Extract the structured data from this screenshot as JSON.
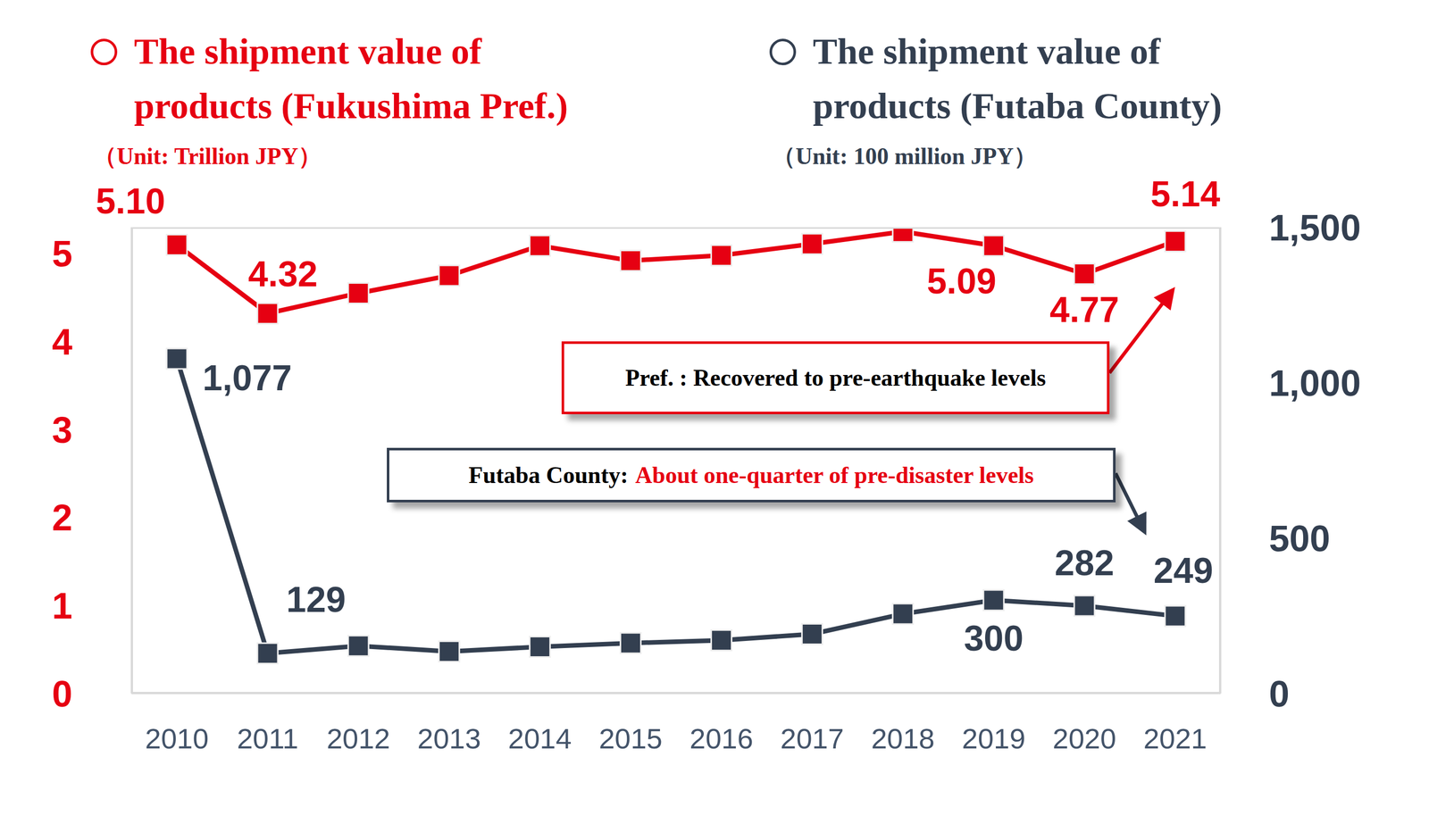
{
  "chart_data": {
    "type": "line",
    "categories": [
      "2010",
      "2011",
      "2012",
      "2013",
      "2014",
      "2015",
      "2016",
      "2017",
      "2018",
      "2019",
      "2020",
      "2021"
    ],
    "ylim": [
      0,
      5.3
    ],
    "yticks": [
      0,
      1,
      2,
      3,
      4,
      5
    ],
    "y2lim": [
      0,
      1500
    ],
    "y2ticks": [
      0,
      500,
      {
        "value": 1000,
        "label": "1,000"
      },
      {
        "value": 1500,
        "label": "1,500"
      }
    ],
    "grid": false,
    "data_labels": true,
    "series": [
      {
        "name": "The shipment value of products (Fukushima Pref.)",
        "unit": "（Unit: Trillion JPY）",
        "color": "#e60012",
        "marker": "square",
        "axis": "y",
        "values": [
          5.1,
          4.32,
          4.55,
          4.75,
          5.09,
          4.92,
          4.98,
          5.11,
          5.25,
          5.09,
          4.77,
          5.14
        ],
        "value_labels": [
          "5.10",
          "4.32",
          null,
          null,
          null,
          null,
          null,
          null,
          null,
          "5.09",
          "4.77",
          "5.14"
        ]
      },
      {
        "name": "The shipment value of products (Futaba County)",
        "unit": "（Unit: 100 million JPY）",
        "color": "#333f50",
        "marker": "square",
        "axis": "y2",
        "values": [
          1077,
          129,
          153,
          135,
          150,
          162,
          171,
          191,
          256,
          300,
          282,
          249
        ],
        "value_labels": [
          "1,077",
          "129",
          null,
          null,
          null,
          null,
          null,
          null,
          null,
          "300",
          "282",
          "249"
        ]
      }
    ],
    "annotations": [
      {
        "text": "Pref. : Recovered to pre-earthquake levels"
      },
      {
        "text": "Futaba County:",
        "highlight": "About one-quarter of pre-disaster levels"
      }
    ]
  }
}
